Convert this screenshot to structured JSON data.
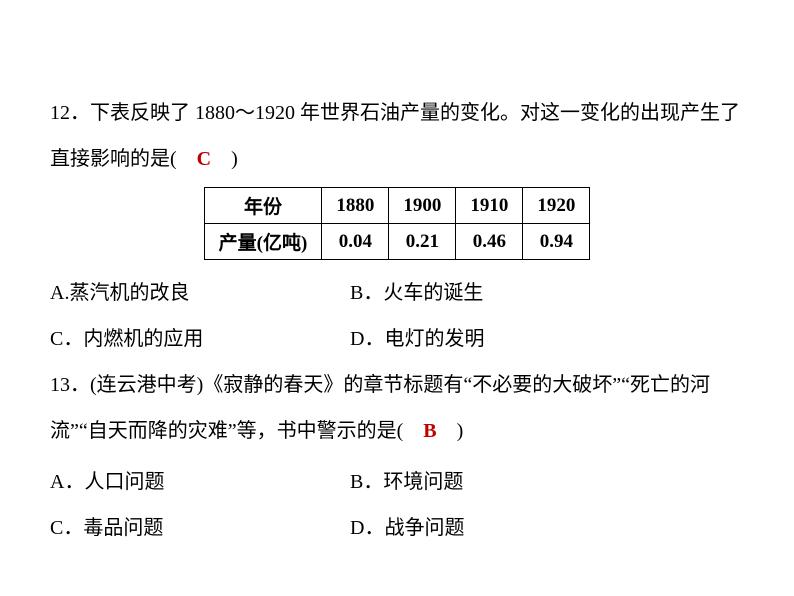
{
  "q12": {
    "number": "12．",
    "text_part1": "下表反映了 1880～1920 年世界石油产量的变化。对这一变化的出现产生了直接影响的是(　",
    "answer": "C",
    "text_part2": "　)",
    "table": {
      "header_label": "年份",
      "headers": [
        "1880",
        "1900",
        "1910",
        "1920"
      ],
      "row_label": "产量(亿吨)",
      "values": [
        "0.04",
        "0.21",
        "0.46",
        "0.94"
      ]
    },
    "options": {
      "a": "A.蒸汽机的改良",
      "b": "B．火车的诞生",
      "c": "C．内燃机的应用",
      "d": "D．电灯的发明"
    }
  },
  "q13": {
    "number": "13．",
    "text_part1": "(连云港中考)《寂静的春天》的章节标题有“不必要的大破坏”“死亡的河流”“自天而降的灾难”等，书中警示的是(　",
    "answer": "B",
    "text_part2": "　)",
    "options": {
      "a": "A．人口问题",
      "b": "B．环境问题",
      "c": "C．毒品问题",
      "d": "D．战争问题"
    }
  }
}
